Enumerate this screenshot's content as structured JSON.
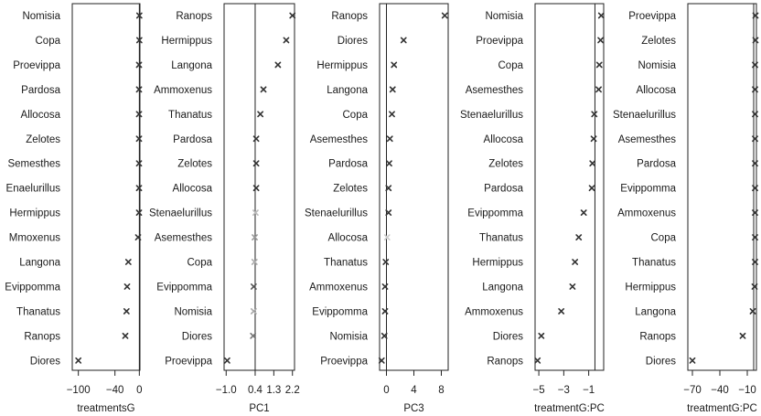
{
  "chart_data": [
    {
      "type": "scatter",
      "xlabel": "treatmentsG",
      "xticks": [
        -100,
        -40,
        0
      ],
      "tick_labels": [
        "−100",
        "−40",
        "0"
      ],
      "xlim": [
        -110,
        1
      ],
      "zero_line": 0,
      "categories": [
        "Nomisia",
        "Copa",
        "Proevippa",
        "Pardosa",
        "Allocosa",
        "Zelotes",
        "Semesthes",
        "Enaelurillus",
        "Hermippus",
        "Mmoxenus",
        "Langona",
        "Evippomma",
        "Thanatus",
        "Ranops",
        "Diores"
      ],
      "values": [
        0,
        0,
        -0.5,
        -0.5,
        -0.5,
        -0.5,
        -0.5,
        -0.5,
        -0.5,
        -2,
        -18,
        -20,
        -21,
        -23,
        -100
      ],
      "mark_color": [
        "#333333",
        "#333333",
        "#333333",
        "#333333",
        "#333333",
        "#333333",
        "#333333",
        "#333333",
        "#333333",
        "#333333",
        "#333333",
        "#333333",
        "#333333",
        "#333333",
        "#333333"
      ]
    },
    {
      "type": "scatter",
      "xlabel": "PC1",
      "xticks": [
        -1.0,
        0.4,
        1.3,
        2.2
      ],
      "tick_labels": [
        "−1.0",
        "0.4",
        "1.3",
        "2.2"
      ],
      "xlim": [
        -1.1,
        2.3
      ],
      "zero_line": 0.4,
      "categories": [
        "Ranops",
        "Hermippus",
        "Langona",
        "Ammoxenus",
        "Thanatus",
        "Pardosa",
        "Zelotes",
        "Allocosa",
        "Stenaelurillus",
        "Asemesthes",
        "Copa",
        "Evippomma",
        "Nomisia",
        "Diores",
        "Proevippa"
      ],
      "values": [
        2.2,
        1.9,
        1.5,
        0.8,
        0.65,
        0.45,
        0.45,
        0.45,
        0.42,
        0.38,
        0.37,
        0.33,
        0.33,
        0.3,
        -0.95
      ],
      "mark_color": [
        "#333333",
        "#333333",
        "#333333",
        "#333333",
        "#333333",
        "#333333",
        "#333333",
        "#333333",
        "#bbbbbb",
        "#999999",
        "#aaaaaa",
        "#555555",
        "#aaaaaa",
        "#777777",
        "#333333"
      ]
    },
    {
      "type": "scatter",
      "xlabel": "PC3",
      "xticks": [
        0,
        4,
        8
      ],
      "tick_labels": [
        "0",
        "4",
        "8"
      ],
      "xlim": [
        -1,
        9
      ],
      "zero_line": 0,
      "categories": [
        "Ranops",
        "Diores",
        "Hermippus",
        "Langona",
        "Copa",
        "Asemesthes",
        "Pardosa",
        "Zelotes",
        "Stenaelurillus",
        "Allocosa",
        "Thanatus",
        "Ammoxenus",
        "Evippomma",
        "Nomisia",
        "Proevippa"
      ],
      "values": [
        8.5,
        2.5,
        1.1,
        0.9,
        0.8,
        0.5,
        0.4,
        0.3,
        0.3,
        0.1,
        -0.1,
        -0.2,
        -0.2,
        -0.3,
        -0.7
      ],
      "mark_color": [
        "#333333",
        "#333333",
        "#333333",
        "#333333",
        "#333333",
        "#333333",
        "#333333",
        "#333333",
        "#333333",
        "#cccccc",
        "#333333",
        "#333333",
        "#333333",
        "#333333",
        "#333333"
      ]
    },
    {
      "type": "scatter",
      "xlabel": "treatmentG:PC",
      "xticks": [
        -5,
        -3,
        -1
      ],
      "tick_labels": [
        "−5",
        "−3",
        "−1"
      ],
      "xlim": [
        -5.3,
        0.2
      ],
      "zero_line": -0.5,
      "categories": [
        "Nomisia",
        "Proevippa",
        "Copa",
        "Asemesthes",
        "Stenaelurillus",
        "Allocosa",
        "Zelotes",
        "Pardosa",
        "Evippomma",
        "Thanatus",
        "Hermippus",
        "Langona",
        "Ammoxenus",
        "Diores",
        "Ranops"
      ],
      "values": [
        0,
        -0.05,
        -0.15,
        -0.2,
        -0.55,
        -0.6,
        -0.7,
        -0.75,
        -1.4,
        -1.8,
        -2.1,
        -2.3,
        -3.2,
        -4.8,
        -5.1
      ],
      "mark_color": [
        "#333333",
        "#333333",
        "#333333",
        "#333333",
        "#333333",
        "#333333",
        "#333333",
        "#333333",
        "#333333",
        "#333333",
        "#333333",
        "#333333",
        "#333333",
        "#333333",
        "#333333"
      ]
    },
    {
      "type": "scatter",
      "xlabel": "treatmentG:PC",
      "xticks": [
        -70,
        -40,
        -10
      ],
      "tick_labels": [
        "−70",
        "−40",
        "−10"
      ],
      "xlim": [
        -75,
        0
      ],
      "zero_line": -3,
      "categories": [
        "Proevippa",
        "Zelotes",
        "Nomisia",
        "Allocosa",
        "Stenaelurillus",
        "Asemesthes",
        "Pardosa",
        "Evippomma",
        "Ammoxenus",
        "Copa",
        "Thanatus",
        "Hermippus",
        "Langona",
        "Ranops",
        "Diores"
      ],
      "values": [
        -1,
        -1,
        -1.5,
        -1.5,
        -1.5,
        -1.5,
        -1.5,
        -1.5,
        -1.5,
        -1.5,
        -1.5,
        -2,
        -4,
        -15,
        -70
      ],
      "mark_color": [
        "#333333",
        "#333333",
        "#333333",
        "#333333",
        "#333333",
        "#333333",
        "#333333",
        "#333333",
        "#333333",
        "#333333",
        "#333333",
        "#333333",
        "#333333",
        "#333333",
        "#333333"
      ]
    }
  ]
}
